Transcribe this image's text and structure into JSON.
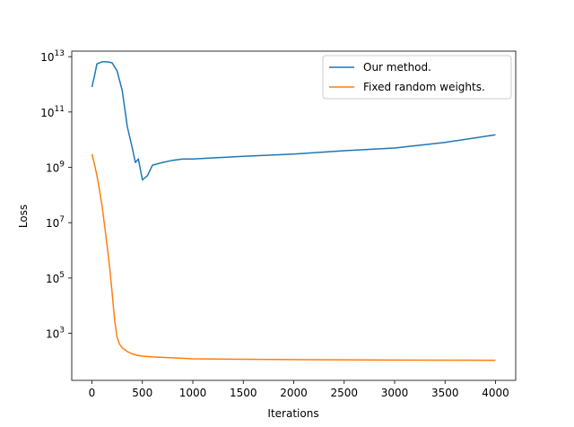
{
  "chart_data": {
    "type": "line",
    "xlabel": "Iterations",
    "ylabel": "Loss",
    "xlim": [
      -200,
      4200
    ],
    "ylim_log10": [
      1.3,
      13.2
    ],
    "yscale": "log",
    "xticks": [
      0,
      500,
      1000,
      1500,
      2000,
      2500,
      3000,
      3500,
      4000
    ],
    "yticks_exp": [
      3,
      5,
      7,
      9,
      11,
      13
    ],
    "legend": {
      "location": "top-right"
    },
    "series": [
      {
        "name": "Our method.",
        "color": "#1f77b4",
        "x": [
          0,
          25,
          50,
          100,
          150,
          200,
          250,
          300,
          350,
          400,
          430,
          460,
          500,
          550,
          600,
          700,
          800,
          900,
          1000,
          1200,
          1500,
          1800,
          2000,
          2500,
          3000,
          3500,
          4000
        ],
        "y": [
          800000000000.0,
          2000000000000.0,
          5500000000000.0,
          6500000000000.0,
          6500000000000.0,
          6000000000000.0,
          3000000000000.0,
          600000000000.0,
          30000000000.0,
          5000000000.0,
          1500000000.0,
          2000000000.0,
          350000000.0,
          500000000.0,
          1200000000.0,
          1500000000.0,
          1800000000.0,
          2000000000.0,
          2000000000.0,
          2200000000.0,
          2500000000.0,
          2800000000.0,
          3000000000.0,
          4000000000.0,
          5000000000.0,
          8000000000.0,
          15000000000.0
        ]
      },
      {
        "name": "Fixed random weights.",
        "color": "#ff7f0e",
        "x": [
          0,
          25,
          50,
          75,
          100,
          125,
          150,
          175,
          200,
          225,
          250,
          275,
          300,
          350,
          400,
          450,
          500,
          600,
          800,
          1000,
          1500,
          2000,
          2500,
          3000,
          3500,
          4000
        ],
        "y": [
          3000000000.0,
          1300000000.0,
          500000000.0,
          150000000.0,
          40000000.0,
          8000000.0,
          1500000.0,
          250000.0,
          30000.0,
          3000.0,
          700,
          400,
          300,
          220,
          180,
          160,
          150,
          140,
          130,
          120,
          115,
          112,
          110,
          108,
          107,
          106
        ]
      }
    ]
  }
}
